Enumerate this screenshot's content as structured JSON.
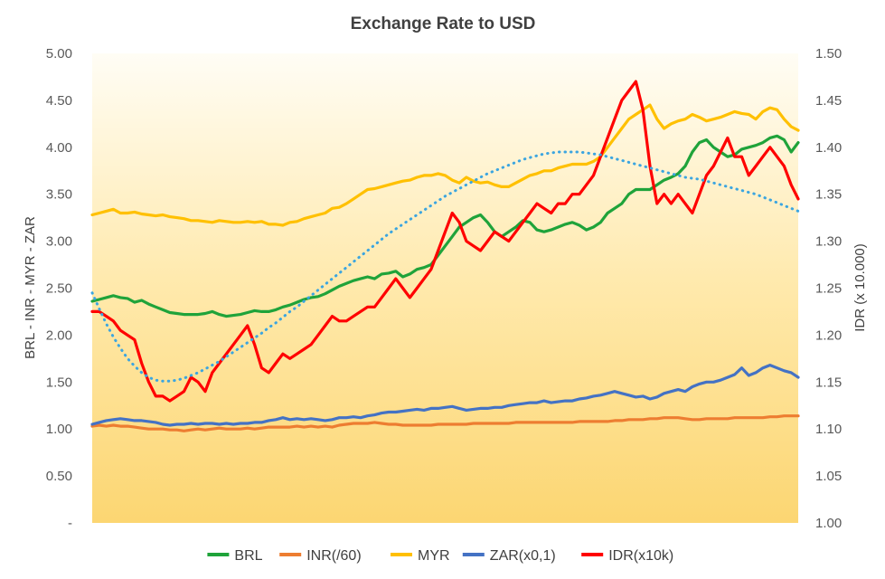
{
  "chart_data": {
    "type": "line",
    "title": "Exchange Rate to USD",
    "ylabel": "BRL - INR - MYR - ZAR",
    "y2label": "IDR (x 10.000)",
    "ylim": [
      0,
      5
    ],
    "y2lim": [
      1.0,
      1.5
    ],
    "y_ticks": [
      "-",
      "0.50",
      "1.00",
      "1.50",
      "2.00",
      "2.50",
      "3.00",
      "3.50",
      "4.00",
      "4.50",
      "5.00"
    ],
    "y2_ticks": [
      "1.00",
      "1.05",
      "1.10",
      "1.15",
      "1.20",
      "1.25",
      "1.30",
      "1.35",
      "1.40",
      "1.45",
      "1.50"
    ],
    "x_count": 101,
    "grid": false,
    "legend_position": "bottom",
    "series": [
      {
        "name": "BRL",
        "color": "#1fa33a",
        "axis": "left",
        "values": [
          2.36,
          2.38,
          2.4,
          2.42,
          2.4,
          2.39,
          2.35,
          2.37,
          2.33,
          2.3,
          2.27,
          2.24,
          2.23,
          2.22,
          2.22,
          2.22,
          2.23,
          2.25,
          2.22,
          2.2,
          2.21,
          2.22,
          2.24,
          2.26,
          2.25,
          2.25,
          2.27,
          2.3,
          2.32,
          2.35,
          2.38,
          2.4,
          2.41,
          2.44,
          2.48,
          2.52,
          2.55,
          2.58,
          2.6,
          2.62,
          2.6,
          2.65,
          2.66,
          2.68,
          2.62,
          2.65,
          2.7,
          2.72,
          2.75,
          2.85,
          2.95,
          3.05,
          3.15,
          3.2,
          3.25,
          3.28,
          3.2,
          3.1,
          3.05,
          3.1,
          3.15,
          3.22,
          3.2,
          3.12,
          3.1,
          3.12,
          3.15,
          3.18,
          3.2,
          3.17,
          3.12,
          3.15,
          3.2,
          3.3,
          3.35,
          3.4,
          3.5,
          3.55,
          3.55,
          3.55,
          3.6,
          3.65,
          3.68,
          3.72,
          3.8,
          3.95,
          4.05,
          4.08,
          4.0,
          3.95,
          3.9,
          3.92,
          3.98,
          4.0,
          4.02,
          4.05,
          4.1,
          4.12,
          4.08,
          3.95,
          4.05
        ]
      },
      {
        "name": "INR(/60)",
        "color": "#ed7d31",
        "axis": "left",
        "values": [
          1.03,
          1.04,
          1.03,
          1.04,
          1.03,
          1.03,
          1.02,
          1.01,
          1.0,
          1.0,
          1.0,
          0.99,
          0.99,
          0.98,
          0.99,
          1.0,
          0.99,
          1.0,
          1.01,
          1.0,
          1.0,
          1.0,
          1.01,
          1.0,
          1.01,
          1.02,
          1.02,
          1.02,
          1.02,
          1.03,
          1.02,
          1.03,
          1.02,
          1.03,
          1.02,
          1.04,
          1.05,
          1.06,
          1.06,
          1.06,
          1.07,
          1.06,
          1.05,
          1.05,
          1.04,
          1.04,
          1.04,
          1.04,
          1.04,
          1.05,
          1.05,
          1.05,
          1.05,
          1.05,
          1.06,
          1.06,
          1.06,
          1.06,
          1.06,
          1.06,
          1.07,
          1.07,
          1.07,
          1.07,
          1.07,
          1.07,
          1.07,
          1.07,
          1.07,
          1.08,
          1.08,
          1.08,
          1.08,
          1.08,
          1.09,
          1.09,
          1.1,
          1.1,
          1.1,
          1.11,
          1.11,
          1.12,
          1.12,
          1.12,
          1.11,
          1.1,
          1.1,
          1.11,
          1.11,
          1.11,
          1.11,
          1.12,
          1.12,
          1.12,
          1.12,
          1.12,
          1.13,
          1.13,
          1.14,
          1.14,
          1.14
        ]
      },
      {
        "name": "MYR",
        "color": "#ffc000",
        "axis": "left",
        "values": [
          3.28,
          3.3,
          3.32,
          3.34,
          3.3,
          3.3,
          3.31,
          3.29,
          3.28,
          3.27,
          3.28,
          3.26,
          3.25,
          3.24,
          3.22,
          3.22,
          3.21,
          3.2,
          3.22,
          3.21,
          3.2,
          3.2,
          3.21,
          3.2,
          3.21,
          3.18,
          3.18,
          3.17,
          3.2,
          3.21,
          3.24,
          3.26,
          3.28,
          3.3,
          3.35,
          3.36,
          3.4,
          3.45,
          3.5,
          3.55,
          3.56,
          3.58,
          3.6,
          3.62,
          3.64,
          3.65,
          3.68,
          3.7,
          3.7,
          3.72,
          3.7,
          3.65,
          3.62,
          3.68,
          3.64,
          3.62,
          3.63,
          3.6,
          3.58,
          3.58,
          3.62,
          3.66,
          3.7,
          3.72,
          3.75,
          3.75,
          3.78,
          3.8,
          3.82,
          3.82,
          3.82,
          3.85,
          3.9,
          4.0,
          4.1,
          4.2,
          4.3,
          4.35,
          4.4,
          4.45,
          4.3,
          4.2,
          4.25,
          4.28,
          4.3,
          4.35,
          4.32,
          4.28,
          4.3,
          4.32,
          4.35,
          4.38,
          4.36,
          4.35,
          4.3,
          4.38,
          4.42,
          4.4,
          4.3,
          4.22,
          4.18
        ]
      },
      {
        "name": "ZAR(x0,1)",
        "color": "#4472c4",
        "axis": "left",
        "values": [
          1.05,
          1.07,
          1.09,
          1.1,
          1.11,
          1.1,
          1.09,
          1.09,
          1.08,
          1.07,
          1.05,
          1.04,
          1.05,
          1.05,
          1.06,
          1.05,
          1.06,
          1.06,
          1.05,
          1.06,
          1.05,
          1.06,
          1.06,
          1.07,
          1.07,
          1.09,
          1.1,
          1.12,
          1.1,
          1.11,
          1.1,
          1.11,
          1.1,
          1.09,
          1.1,
          1.12,
          1.12,
          1.13,
          1.12,
          1.14,
          1.15,
          1.17,
          1.18,
          1.18,
          1.19,
          1.2,
          1.21,
          1.2,
          1.22,
          1.22,
          1.23,
          1.24,
          1.22,
          1.2,
          1.21,
          1.22,
          1.22,
          1.23,
          1.23,
          1.25,
          1.26,
          1.27,
          1.28,
          1.28,
          1.3,
          1.28,
          1.29,
          1.3,
          1.3,
          1.32,
          1.33,
          1.35,
          1.36,
          1.38,
          1.4,
          1.38,
          1.36,
          1.34,
          1.35,
          1.32,
          1.34,
          1.38,
          1.4,
          1.42,
          1.4,
          1.45,
          1.48,
          1.5,
          1.5,
          1.52,
          1.55,
          1.58,
          1.65,
          1.57,
          1.6,
          1.65,
          1.68,
          1.65,
          1.62,
          1.6,
          1.55
        ]
      },
      {
        "name": "IDR(x10k)",
        "color": "#ff0000",
        "axis": "right",
        "values": [
          1.225,
          1.225,
          1.22,
          1.215,
          1.205,
          1.2,
          1.195,
          1.17,
          1.15,
          1.135,
          1.135,
          1.13,
          1.135,
          1.14,
          1.155,
          1.15,
          1.14,
          1.16,
          1.17,
          1.18,
          1.19,
          1.2,
          1.21,
          1.19,
          1.165,
          1.16,
          1.17,
          1.18,
          1.175,
          1.18,
          1.185,
          1.19,
          1.2,
          1.21,
          1.22,
          1.215,
          1.215,
          1.22,
          1.225,
          1.23,
          1.23,
          1.24,
          1.25,
          1.26,
          1.25,
          1.24,
          1.25,
          1.26,
          1.27,
          1.29,
          1.31,
          1.33,
          1.32,
          1.3,
          1.295,
          1.29,
          1.3,
          1.31,
          1.305,
          1.3,
          1.31,
          1.32,
          1.33,
          1.34,
          1.335,
          1.33,
          1.34,
          1.34,
          1.35,
          1.35,
          1.36,
          1.37,
          1.39,
          1.41,
          1.43,
          1.45,
          1.46,
          1.47,
          1.44,
          1.38,
          1.34,
          1.35,
          1.34,
          1.35,
          1.34,
          1.33,
          1.35,
          1.37,
          1.38,
          1.395,
          1.41,
          1.39,
          1.39,
          1.37,
          1.38,
          1.39,
          1.4,
          1.39,
          1.38,
          1.36,
          1.345
        ]
      },
      {
        "name": "",
        "color": "#3ba5e0",
        "axis": "right",
        "trend": true,
        "values": [
          1.245,
          1.228,
          1.212,
          1.198,
          1.186,
          1.175,
          1.167,
          1.16,
          1.155,
          1.152,
          1.151,
          1.151,
          1.152,
          1.154,
          1.157,
          1.16,
          1.164,
          1.168,
          1.172,
          1.177,
          1.182,
          1.187,
          1.192,
          1.197,
          1.202,
          1.208,
          1.213,
          1.219,
          1.225,
          1.23,
          1.236,
          1.242,
          1.248,
          1.254,
          1.26,
          1.266,
          1.272,
          1.278,
          1.284,
          1.29,
          1.296,
          1.302,
          1.308,
          1.313,
          1.318,
          1.323,
          1.328,
          1.333,
          1.338,
          1.343,
          1.348,
          1.352,
          1.356,
          1.36,
          1.364,
          1.368,
          1.372,
          1.375,
          1.378,
          1.381,
          1.384,
          1.387,
          1.389,
          1.391,
          1.393,
          1.394,
          1.395,
          1.395,
          1.395,
          1.395,
          1.394,
          1.393,
          1.392,
          1.39,
          1.388,
          1.386,
          1.384,
          1.382,
          1.38,
          1.378,
          1.376,
          1.374,
          1.372,
          1.37,
          1.368,
          1.367,
          1.366,
          1.364,
          1.362,
          1.36,
          1.358,
          1.356,
          1.354,
          1.352,
          1.35,
          1.347,
          1.344,
          1.341,
          1.338,
          1.335,
          1.332
        ]
      }
    ]
  }
}
